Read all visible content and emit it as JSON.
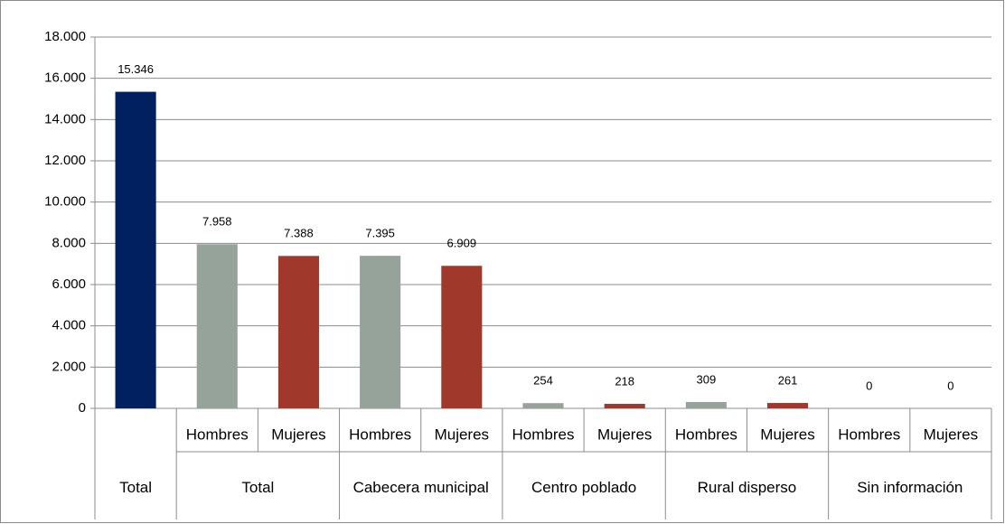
{
  "chart_data": {
    "type": "bar",
    "groups": [
      {
        "label": "Total",
        "categories": [
          null
        ]
      },
      {
        "label": "Total",
        "categories": [
          "Hombres",
          "Mujeres"
        ]
      },
      {
        "label": "Cabecera municipal",
        "categories": [
          "Hombres",
          "Mujeres"
        ]
      },
      {
        "label": "Centro poblado",
        "categories": [
          "Hombres",
          "Mujeres"
        ]
      },
      {
        "label": "Rural disperso",
        "categories": [
          "Hombres",
          "Mujeres"
        ]
      },
      {
        "label": "Sin información",
        "categories": [
          "Hombres",
          "Mujeres"
        ]
      }
    ],
    "values": [
      15346,
      7958,
      7388,
      7395,
      6909,
      254,
      218,
      309,
      261,
      0,
      0
    ],
    "value_labels": [
      "15.346",
      "7.958",
      "7.388",
      "7.395",
      "6.909",
      "254",
      "218",
      "309",
      "261",
      "0",
      "0"
    ],
    "colors": [
      "#002060",
      "#95a39b",
      "#a0392b",
      "#95a39b",
      "#a0392b",
      "#95a39b",
      "#a0392b",
      "#95a39b",
      "#a0392b",
      "#95a39b",
      "#a0392b"
    ],
    "ylim": [
      0,
      18000
    ],
    "yticks": [
      0,
      {
        "value": 2000,
        "label": "2.000"
      },
      {
        "value": 4000,
        "label": "4.000"
      },
      {
        "value": 6000,
        "label": "6.000"
      },
      {
        "value": 8000,
        "label": "8.000"
      },
      {
        "value": 10000,
        "label": "10.000"
      },
      {
        "value": 12000,
        "label": "12.000"
      },
      {
        "value": 14000,
        "label": "14.000"
      },
      {
        "value": 16000,
        "label": "16.000"
      },
      {
        "value": 18000,
        "label": "18.000"
      }
    ],
    "grid": true
  }
}
